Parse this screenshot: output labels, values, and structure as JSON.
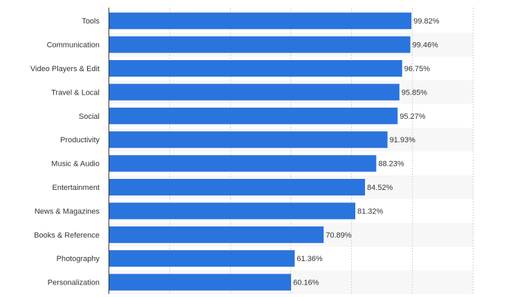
{
  "chart_data": {
    "type": "bar",
    "orientation": "horizontal",
    "title": "",
    "xlabel": "",
    "ylabel": "",
    "xlim": [
      0,
      120
    ],
    "grid": true,
    "bar_color": "#2a74dd",
    "alt_band_color": "#f7f7f7",
    "categories": [
      "Tools",
      "Communication",
      "Video Players & Edit",
      "Travel & Local",
      "Social",
      "Productivity",
      "Music & Audio",
      "Entertainment",
      "News & Magazines",
      "Books & Reference",
      "Photography",
      "Personalization"
    ],
    "values": [
      99.82,
      99.46,
      96.75,
      95.85,
      95.27,
      91.93,
      88.23,
      84.52,
      81.32,
      70.89,
      61.36,
      60.16
    ],
    "value_labels": [
      "99.82%",
      "99.46%",
      "96.75%",
      "95.85%",
      "95.27%",
      "91.93%",
      "88.23%",
      "84.52%",
      "81.32%",
      "70.89%",
      "61.36%",
      "60.16%"
    ]
  }
}
